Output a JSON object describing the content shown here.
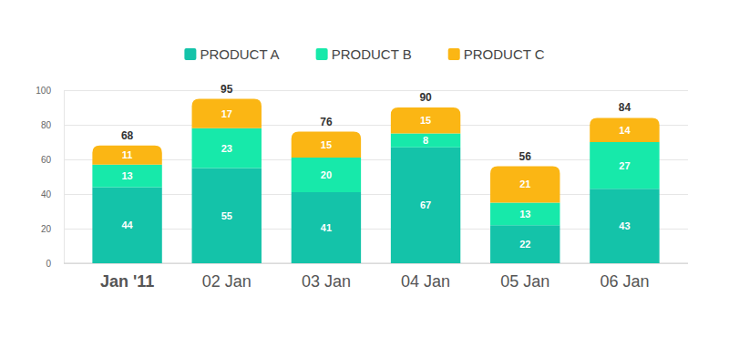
{
  "chart_data": {
    "type": "bar",
    "stacked": true,
    "data_labels": true,
    "grid": true,
    "legend": "top",
    "categories": [
      "Jan '11",
      "02 Jan",
      "03 Jan",
      "04 Jan",
      "05 Jan",
      "06 Jan"
    ],
    "series": [
      {
        "name": "PRODUCT A",
        "color": "#14c3a9",
        "values": [
          44,
          55,
          41,
          67,
          22,
          43
        ]
      },
      {
        "name": "PRODUCT B",
        "color": "#17e9aa",
        "values": [
          13,
          23,
          20,
          8,
          13,
          27
        ]
      },
      {
        "name": "PRODUCT C",
        "color": "#fbb614",
        "values": [
          11,
          17,
          15,
          15,
          21,
          14
        ]
      }
    ],
    "totals": [
      68,
      95,
      76,
      90,
      56,
      84
    ],
    "ylim": [
      0,
      100
    ],
    "yticks": [
      0,
      20,
      40,
      60,
      80,
      100
    ]
  }
}
